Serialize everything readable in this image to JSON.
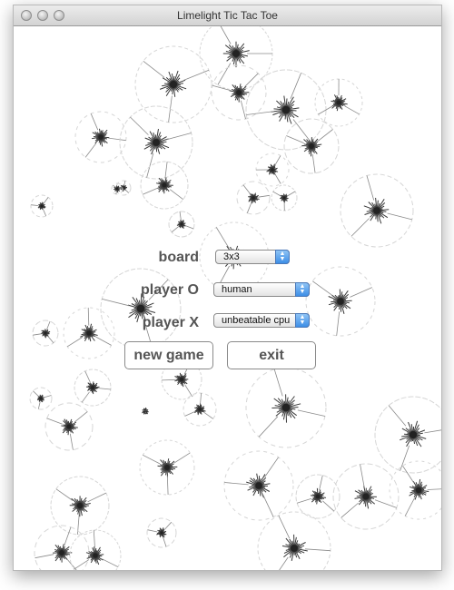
{
  "window": {
    "title": "Limelight Tic Tac Toe"
  },
  "form": {
    "board_label": "board",
    "board_value": "3x3",
    "player_o_label": "player O",
    "player_o_value": "human",
    "player_x_label": "player X",
    "player_x_value": "unbeatable cpu"
  },
  "buttons": {
    "new_game": "new game",
    "exit": "exit"
  },
  "colors": {
    "titlebar": "#d8d8d8",
    "select_arrow": "#3d8ee6",
    "label_text": "#555555"
  },
  "icons": {
    "traffic_lights": "window-control-icon",
    "select_arrow": "updown-arrow-icon"
  }
}
